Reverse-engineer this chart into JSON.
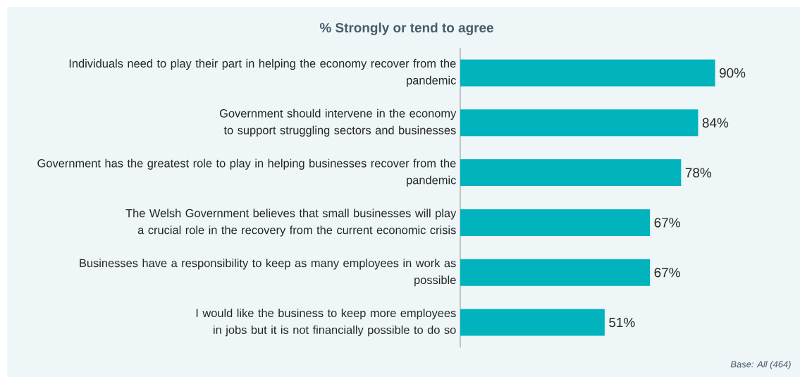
{
  "chart_data": {
    "type": "bar",
    "orientation": "horizontal",
    "title": "% Strongly or tend to agree",
    "categories": [
      "Individuals need to play their part in helping the economy recover from the pandemic",
      "Government should intervene in the economy to support struggling sectors and businesses",
      "Government has the greatest role to play in helping businesses recover from the pandemic",
      "The Welsh Government believes that small businesses will play a crucial role in the recovery from the current economic crisis",
      "Businesses have a responsibility to keep as many employees in work as possible",
      "I would like the business to keep more employees in jobs but it is not financially possible to do so"
    ],
    "values": [
      90,
      84,
      78,
      67,
      67,
      51
    ],
    "value_labels": [
      "90%",
      "84%",
      "78%",
      "67%",
      "67%",
      "51%"
    ],
    "color": "#00b3bc",
    "annotations": [
      "Base: All (464)"
    ]
  }
}
